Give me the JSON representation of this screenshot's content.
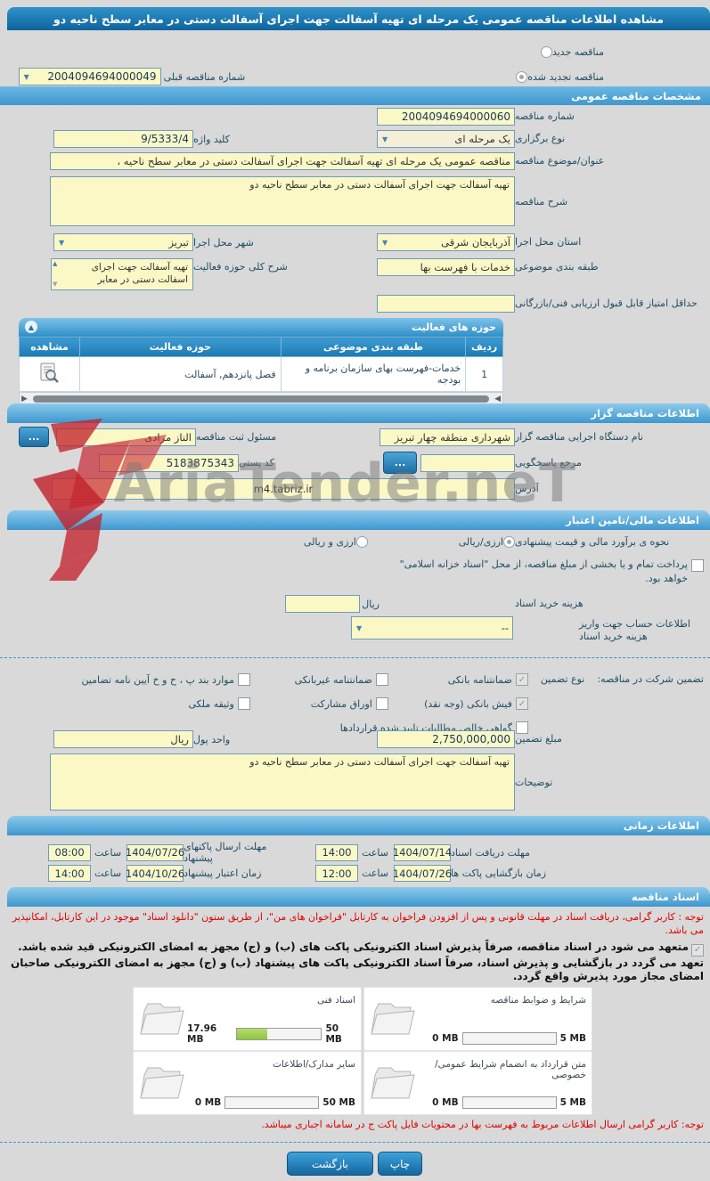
{
  "watermark": {
    "text": "AriaTender.neT"
  },
  "header": {
    "title": "مشاهده اطلاعات مناقصه عمومی یک مرحله ای تهیه آسفالت جهت اجرای آسفالت دستی در معابر سطح ناحیه دو"
  },
  "top": {
    "radio_new": "مناقصه جدید",
    "radio_renewed": "مناقصه تجدید شده",
    "prev_number_label": "شماره مناقصه قبلی",
    "prev_number_value": "2004094694000049"
  },
  "specs": {
    "bar": "مشخصات مناقصه عمومی",
    "number_label": "شماره مناقصه",
    "number_value": "2004094694000060",
    "type_label": "نوع برگزاری",
    "type_value": "یک مرحله ای",
    "keyword_label": "کلید واژه",
    "keyword_value": "9/5333/4",
    "subject_label": "عنوان/موضوع مناقصه",
    "subject_value": "مناقصه عمومی یک مرحله ای تهیه آسفالت جهت اجرای آسفالت دستی در معابر سطح ناحیه ،",
    "desc_label": "شرح مناقصه",
    "desc_value": "تهیه آسفالت جهت اجرای آسفالت دستی در معابر سطح ناحیه دو",
    "province_label": "استان محل اجرا",
    "province_value": "آذربایجان شرقی",
    "city_label": "شهر محل اجرا",
    "city_value": "تبریز",
    "category_label": "طبقه بندی موضوعی",
    "category_value": "خدمات با فهرست بها",
    "activity_label": "شرح کلی حوزه فعالیت",
    "activity_value": "تهیه آسفالت جهت اجرای اسفالت دستی در معابر",
    "min_score_label": "حداقل امتیاز قابل قبول ارزیابی فنی/بازرگانی"
  },
  "activity_panel": {
    "bar": "حوزه های فعالیت",
    "col_index": "ردیف",
    "col_category": "طبقه بندی موضوعی",
    "col_field": "حوزه فعالیت",
    "col_view": "مشاهده",
    "rows": [
      {
        "index": "1",
        "category": "خدمات-فهرست بهای سازمان برنامه و بودجه",
        "field": "فصل پانزدهم, آسفالت"
      }
    ]
  },
  "organizer": {
    "bar": "اطلاعات مناقصه گزار",
    "agency_label": "نام دستگاه اجرایی مناقصه گزار",
    "agency_value": "شهرداری منطقه چهار تبریز",
    "registrar_label": "مسئول ثبت مناقصه",
    "registrar_value": "الناز مرادی",
    "dots": "...",
    "ref_label": "مرجع پاسخگویی",
    "postal_label": "کد پستی",
    "postal_value": "5183875343",
    "address_label": "آدرس",
    "address_value": "m4.tabriz.ir"
  },
  "financial": {
    "bar": "اطلاعات مالی/تامین اعتبار",
    "estimate_label": "نحوه ی برآورد مالی و قیمت پیشنهادی",
    "opt_rial": "ارزی/ریالی",
    "opt_both": "ارزی و ریالی",
    "treasury_note": "پرداخت تمام و یا بخشی از مبلغ مناقصه، از محل \"اسناد خزانه اسلامی\" خواهد بود.",
    "doc_fee_label": "هزینه خرید اسناد",
    "rial": "ریال",
    "account_label": "اطلاعات حساب جهت واریز هزینه خرید اسناد",
    "account_value": "--"
  },
  "guarantee": {
    "main_label": "تضمین شرکت در مناقصه:",
    "type_label": "نوع تضمین",
    "cb_bank": "ضمانتنامه بانکی",
    "cb_nonbank": "ضمانتنامه غیربانکی",
    "cb_articles": "موارد بند پ ، ح و خ آیین نامه تضامین",
    "cb_deposit": "فیش بانکی (وجه نقد)",
    "cb_bonds": "اوراق مشارکت",
    "cb_estate": "وثیقه ملکی",
    "cb_claims": "گواهی خالص مطالبات تایید شده قراردادها",
    "amount_label": "مبلغ تضمین",
    "amount_value": "2,750,000,000",
    "currency_label": "واحد پول",
    "currency_value": "ریال",
    "notes_label": "توضیحات",
    "notes_value": "تهیه آسفالت جهت اجرای آسفالت دستی در معابر سطح ناحیه دو"
  },
  "schedule": {
    "bar": "اطلاعات زمانی",
    "hour_label": "ساعت",
    "r1a_label": "مهلت دریافت اسناد",
    "r1a_date": "1404/07/14",
    "r1a_time": "14:00",
    "r1b_label": "مهلت ارسال پاکتهای پیشنهاد",
    "r1b_date": "1404/07/26",
    "r1b_time": "08:00",
    "r2a_label": "زمان بازگشایی پاکت ها",
    "r2a_date": "1404/07/26",
    "r2a_time": "12:00",
    "r2b_label": "زمان اعتبار پیشنهاد",
    "r2b_date": "1404/10/26",
    "r2b_time": "14:00"
  },
  "documents": {
    "bar": "اسناد مناقصه",
    "notice": "توجه : کاربر گرامی، دریافت اسناد در مهلت قانونی و پس از افزودن فراخوان به کارتابل \"فراخوان های من\"، از طریق ستون \"دانلود اسناد\" موجود در این کارتابل، امکانپذیر می باشد.",
    "commitment": "متعهد می شود در اسناد مناقصه، صرفاً پذیرش اسناد الکترونیکی پاکت های (ب) و (ج) مجهز به امضای الکترونیکی قید شده باشد. تعهد می گردد در بازگشایی و پذیرش اسناد، صرفاً اسناد الکترونیکی پاکت های پیشنهاد (ب) و (ج) مجهز به امضای الکترونیکی صاحبان امضای مجاز مورد پذیرش واقع گردد.",
    "boxes": [
      {
        "label": "شرایط و ضوابط مناقصه",
        "current": "0 MB",
        "max": "5 MB",
        "pct": 0
      },
      {
        "label": "اسناد فنی",
        "current": "17.96 MB",
        "max": "50 MB",
        "pct": 36
      },
      {
        "label": "متن قرارداد به انضمام شرایط عمومی/خصوصی",
        "current": "0 MB",
        "max": "5 MB",
        "pct": 0
      },
      {
        "label": "سایر مدارک/اطلاعات",
        "current": "0 MB",
        "max": "50 MB",
        "pct": 0
      }
    ],
    "footer_note": "توجه: کاربر گرامی ارسال اطلاعات مربوط به فهرست بها در محتویات فایل پاکت ج در سامانه اجباری میباشد."
  },
  "buttons": {
    "back": "بازگشت",
    "print": "چاپ"
  }
}
